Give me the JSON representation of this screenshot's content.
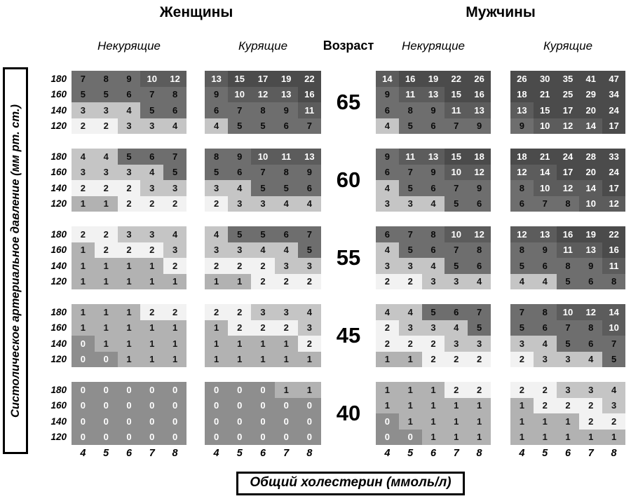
{
  "header": {
    "women": "Женщины",
    "men": "Мужчины",
    "age": "Возраст",
    "nonsmokers": "Некурящие",
    "smokers": "Курящие"
  },
  "chart_data": {
    "type": "heatmap",
    "xlabel": "Общий холестерин (ммоль/л)",
    "ylabel": "Систолическое артериальное давление (мм рт. ст.)",
    "x_ticks": [
      4,
      5,
      6,
      7,
      8
    ],
    "y_ticks": [
      180,
      160,
      140,
      120
    ],
    "ages": [
      65,
      60,
      55,
      45,
      40
    ],
    "columns": [
      "women_nonsmoking",
      "women_smoking",
      "men_nonsmoking",
      "men_smoking"
    ],
    "legend_position": "none",
    "grid": false,
    "risk_bands": [
      {
        "range": "0",
        "min": 0,
        "max": 0,
        "bg": "#8e8e8e",
        "fg": "#ffffff"
      },
      {
        "range": "1",
        "min": 1,
        "max": 1,
        "bg": "#b2b2b2",
        "fg": "#161616"
      },
      {
        "range": "2",
        "min": 2,
        "max": 2,
        "bg": "#f2f2f2",
        "fg": "#161616"
      },
      {
        "range": "3-4",
        "min": 3,
        "max": 4,
        "bg": "#c5c5c5",
        "fg": "#161616"
      },
      {
        "range": "5-9",
        "min": 5,
        "max": 9,
        "bg": "#6e6e6e",
        "fg": "#0a0a0a"
      },
      {
        "range": "10-14",
        "min": 10,
        "max": 14,
        "bg": "#5c5c5c",
        "fg": "#ffffff"
      },
      {
        "range": "15+",
        "min": 15,
        "max": 99,
        "bg": "#4b4b4b",
        "fg": "#ffffff"
      }
    ],
    "groups": [
      {
        "age": 65,
        "women_nonsmoking": [
          [
            7,
            8,
            9,
            10,
            12
          ],
          [
            5,
            5,
            6,
            7,
            8
          ],
          [
            3,
            3,
            4,
            5,
            6
          ],
          [
            2,
            2,
            3,
            3,
            4
          ]
        ],
        "women_smoking": [
          [
            13,
            15,
            17,
            19,
            22
          ],
          [
            9,
            10,
            12,
            13,
            16
          ],
          [
            6,
            7,
            8,
            9,
            11
          ],
          [
            4,
            5,
            5,
            6,
            7
          ]
        ],
        "men_nonsmoking": [
          [
            14,
            16,
            19,
            22,
            26
          ],
          [
            9,
            11,
            13,
            15,
            16
          ],
          [
            6,
            8,
            9,
            11,
            13
          ],
          [
            4,
            5,
            6,
            7,
            9
          ]
        ],
        "men_smoking": [
          [
            26,
            30,
            35,
            41,
            47
          ],
          [
            18,
            21,
            25,
            29,
            34
          ],
          [
            13,
            15,
            17,
            20,
            24
          ],
          [
            9,
            10,
            12,
            14,
            17
          ]
        ]
      },
      {
        "age": 60,
        "women_nonsmoking": [
          [
            4,
            4,
            5,
            6,
            7
          ],
          [
            3,
            3,
            3,
            4,
            5
          ],
          [
            2,
            2,
            2,
            3,
            3
          ],
          [
            1,
            1,
            2,
            2,
            2
          ]
        ],
        "women_smoking": [
          [
            8,
            9,
            10,
            11,
            13
          ],
          [
            5,
            6,
            7,
            8,
            9
          ],
          [
            3,
            4,
            5,
            5,
            6
          ],
          [
            2,
            3,
            3,
            4,
            4
          ]
        ],
        "men_nonsmoking": [
          [
            9,
            11,
            13,
            15,
            18
          ],
          [
            6,
            7,
            9,
            10,
            12
          ],
          [
            4,
            5,
            6,
            7,
            9
          ],
          [
            3,
            3,
            4,
            5,
            6
          ]
        ],
        "men_smoking": [
          [
            18,
            21,
            24,
            28,
            33
          ],
          [
            12,
            14,
            17,
            20,
            24
          ],
          [
            8,
            10,
            12,
            14,
            17
          ],
          [
            6,
            7,
            8,
            10,
            12
          ]
        ]
      },
      {
        "age": 55,
        "women_nonsmoking": [
          [
            2,
            2,
            3,
            3,
            4
          ],
          [
            1,
            2,
            2,
            2,
            3
          ],
          [
            1,
            1,
            1,
            1,
            2
          ],
          [
            1,
            1,
            1,
            1,
            1
          ]
        ],
        "women_smoking": [
          [
            4,
            5,
            5,
            6,
            7
          ],
          [
            3,
            3,
            4,
            4,
            5
          ],
          [
            2,
            2,
            2,
            3,
            3
          ],
          [
            1,
            1,
            2,
            2,
            2
          ]
        ],
        "men_nonsmoking": [
          [
            6,
            7,
            8,
            10,
            12
          ],
          [
            4,
            5,
            6,
            7,
            8
          ],
          [
            3,
            3,
            4,
            5,
            6
          ],
          [
            2,
            2,
            3,
            3,
            4
          ]
        ],
        "men_smoking": [
          [
            12,
            13,
            16,
            19,
            22
          ],
          [
            8,
            9,
            11,
            13,
            16
          ],
          [
            5,
            6,
            8,
            9,
            11
          ],
          [
            4,
            4,
            5,
            6,
            8
          ]
        ]
      },
      {
        "age": 45,
        "women_nonsmoking": [
          [
            1,
            1,
            1,
            2,
            2
          ],
          [
            1,
            1,
            1,
            1,
            1
          ],
          [
            0,
            1,
            1,
            1,
            1
          ],
          [
            0,
            0,
            1,
            1,
            1
          ]
        ],
        "women_smoking": [
          [
            2,
            2,
            3,
            3,
            4
          ],
          [
            1,
            2,
            2,
            2,
            3
          ],
          [
            1,
            1,
            1,
            1,
            2
          ],
          [
            1,
            1,
            1,
            1,
            1
          ]
        ],
        "men_nonsmoking": [
          [
            4,
            4,
            5,
            6,
            7
          ],
          [
            2,
            3,
            3,
            4,
            5
          ],
          [
            2,
            2,
            2,
            3,
            3
          ],
          [
            1,
            1,
            2,
            2,
            2
          ]
        ],
        "men_smoking": [
          [
            7,
            8,
            10,
            12,
            14
          ],
          [
            5,
            6,
            7,
            8,
            10
          ],
          [
            3,
            4,
            5,
            6,
            7
          ],
          [
            2,
            3,
            3,
            4,
            5
          ]
        ]
      },
      {
        "age": 40,
        "women_nonsmoking": [
          [
            0,
            0,
            0,
            0,
            0
          ],
          [
            0,
            0,
            0,
            0,
            0
          ],
          [
            0,
            0,
            0,
            0,
            0
          ],
          [
            0,
            0,
            0,
            0,
            0
          ]
        ],
        "women_smoking": [
          [
            0,
            0,
            0,
            1,
            1
          ],
          [
            0,
            0,
            0,
            0,
            0
          ],
          [
            0,
            0,
            0,
            0,
            0
          ],
          [
            0,
            0,
            0,
            0,
            0
          ]
        ],
        "men_nonsmoking": [
          [
            1,
            1,
            1,
            2,
            2
          ],
          [
            1,
            1,
            1,
            1,
            1
          ],
          [
            0,
            1,
            1,
            1,
            1
          ],
          [
            0,
            0,
            1,
            1,
            1
          ]
        ],
        "men_smoking": [
          [
            2,
            2,
            3,
            3,
            4
          ],
          [
            1,
            2,
            2,
            2,
            3
          ],
          [
            1,
            1,
            1,
            2,
            2
          ],
          [
            1,
            1,
            1,
            1,
            1
          ]
        ]
      }
    ]
  }
}
